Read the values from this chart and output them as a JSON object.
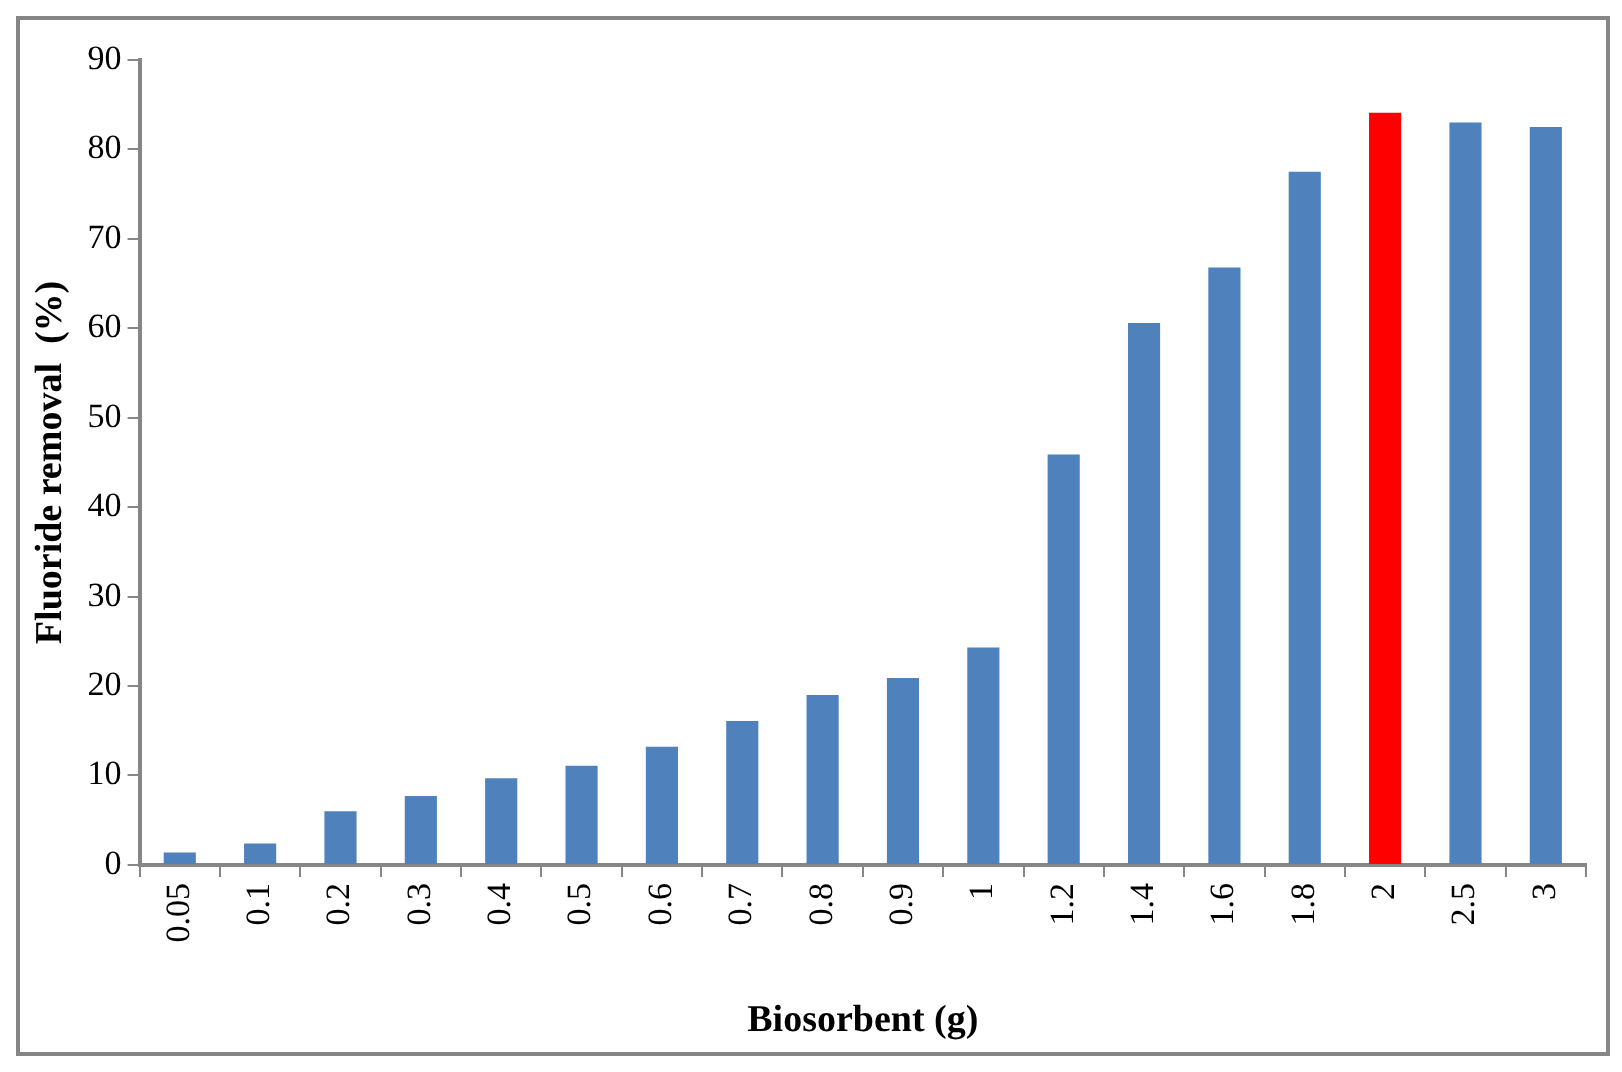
{
  "chart_data": {
    "type": "bar",
    "xlabel": "Biosorbent (g)",
    "ylabel": "Fluoride removal  (%)",
    "categories": [
      "0.05",
      "0.1",
      "0.2",
      "0.3",
      "0.4",
      "0.5",
      "0.6",
      "0.7",
      "0.8",
      "0.9",
      "1",
      "1.2",
      "1.4",
      "1.6",
      "1.8",
      "2",
      "2.5",
      "3"
    ],
    "values": [
      1.4,
      2.4,
      6.0,
      7.7,
      9.7,
      11.1,
      13.2,
      16.1,
      19.0,
      20.9,
      24.3,
      45.9,
      60.6,
      66.8,
      77.5,
      84.1,
      83.0,
      82.5
    ],
    "colors": [
      "#4f81bd",
      "#4f81bd",
      "#4f81bd",
      "#4f81bd",
      "#4f81bd",
      "#4f81bd",
      "#4f81bd",
      "#4f81bd",
      "#4f81bd",
      "#4f81bd",
      "#4f81bd",
      "#4f81bd",
      "#4f81bd",
      "#4f81bd",
      "#4f81bd",
      "#ff0000",
      "#4f81bd",
      "#4f81bd"
    ],
    "ylim": [
      0,
      90
    ],
    "yticks": [
      0,
      10,
      20,
      30,
      40,
      50,
      60,
      70,
      80,
      90
    ],
    "grid": false,
    "legend": false
  }
}
